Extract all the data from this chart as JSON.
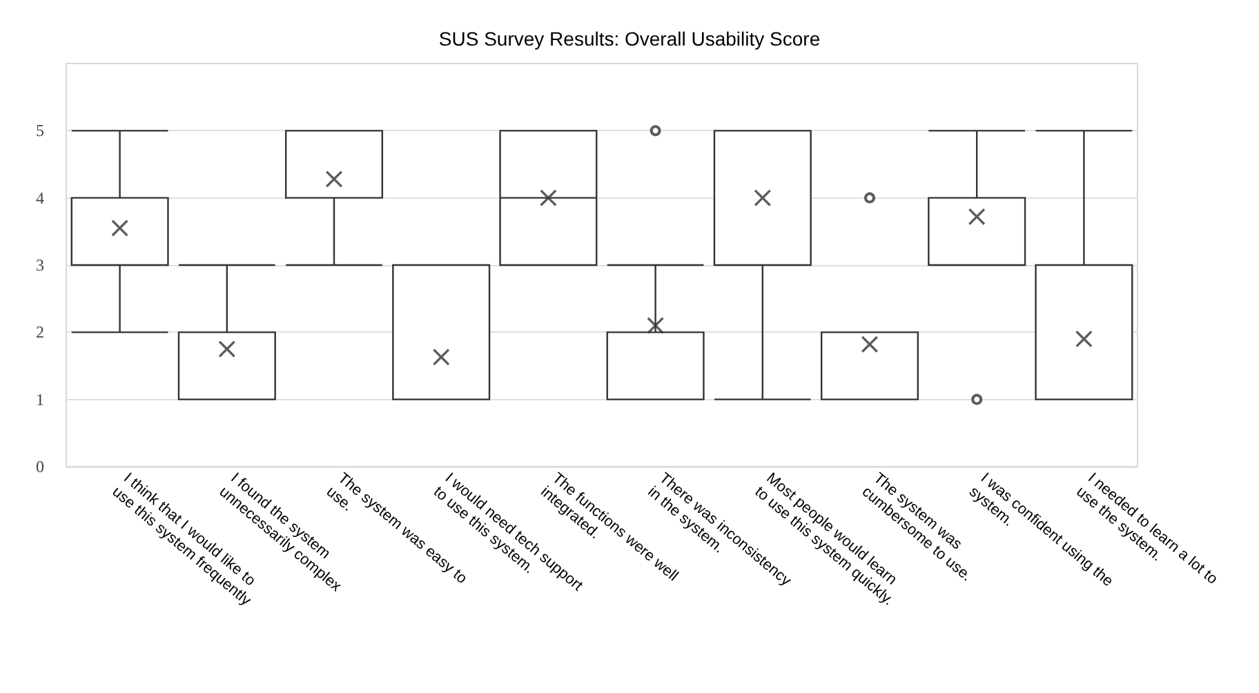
{
  "chart_data": {
    "type": "box",
    "title": "SUS Survey Results: Overall Usability Score",
    "categories": [
      "I think that I would like to\nuse this system frequently",
      "I found the system\nunnecessarily complex",
      "The system was easy to\nuse.",
      "I would need tech support\nto use this system.",
      "The functions were well\nintegrated.",
      "There was inconsistency\nin the system.",
      "Most people would learn\nto use this system quickly.",
      "The system was\ncumbersome to use.",
      "I was confident using the\nsystem.",
      "I needed to learn a lot to\nuse the system."
    ],
    "color": "#333333",
    "boxes": [
      {
        "low": 2,
        "q1": 3,
        "median": 4,
        "q3": 4,
        "high": 5
      },
      {
        "low": 1,
        "q1": 1,
        "median": 2,
        "q3": 2,
        "high": 3
      },
      {
        "low": 3,
        "q1": 4,
        "median": 4,
        "q3": 5,
        "high": 5
      },
      {
        "low": 1,
        "q1": 1,
        "median": 1,
        "q3": 3,
        "high": 3
      },
      {
        "low": 3,
        "q1": 3,
        "median": 4,
        "q3": 5,
        "high": 5
      },
      {
        "low": 1,
        "q1": 1,
        "median": 2,
        "q3": 2,
        "high": 3,
        "outliers": [
          5
        ]
      },
      {
        "low": 1,
        "q1": 3,
        "median": 5,
        "q3": 5,
        "high": 5
      },
      {
        "low": 1,
        "q1": 1,
        "median": 2,
        "q3": 2,
        "high": 2,
        "outliers": [
          4
        ]
      },
      {
        "low": 3,
        "q1": 3,
        "median": 4,
        "q3": 4,
        "high": 5,
        "outliers": [
          1
        ]
      },
      {
        "low": 1,
        "q1": 1,
        "median": 1,
        "q3": 3,
        "high": 5
      }
    ],
    "series": [
      {
        "type": "scatter",
        "marker": "cross",
        "color": "#333333",
        "x": [
          "I think that I would like to\nuse this system frequently",
          "I found the system\nunnecessarily complex",
          "The system was easy to\nuse.",
          "I would need tech support\nto use this system.",
          "The functions were well\nintegrated.",
          "There was inconsistency\nin the system.",
          "Most people would learn\nto use this system quickly.",
          "The system was\ncumbersome to use.",
          "I was confident using the\nsystem.",
          "I needed to learn a lot to\nuse the system."
        ],
        "values": [
          3.55,
          1.75,
          4.28,
          1.63,
          4.0,
          2.1,
          4.0,
          1.82,
          3.72,
          1.9
        ]
      }
    ],
    "ylim": [
      0,
      6
    ],
    "yticks": [
      0,
      1,
      2,
      3,
      4,
      5
    ],
    "grid": "y"
  }
}
